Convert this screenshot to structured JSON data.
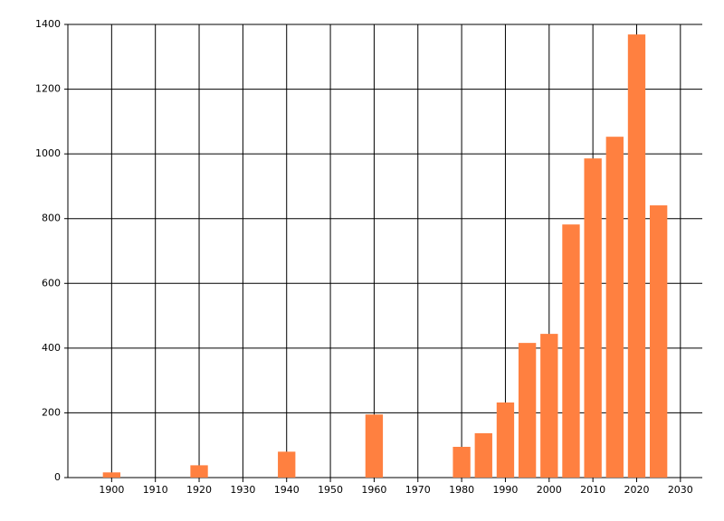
{
  "chart_data": {
    "type": "bar",
    "x": [
      1900,
      1920,
      1940,
      1960,
      1980,
      1985,
      1990,
      1995,
      2000,
      2005,
      2010,
      2015,
      2020,
      2025
    ],
    "values": [
      16,
      38,
      80,
      195,
      95,
      137,
      232,
      416,
      444,
      782,
      986,
      1053,
      1369,
      841
    ],
    "color": "#ff8040",
    "xlim": [
      1890,
      2035
    ],
    "xticks": [
      1900,
      1910,
      1920,
      1930,
      1940,
      1950,
      1960,
      1970,
      1980,
      1990,
      2000,
      2010,
      2020,
      2030
    ],
    "ylim": [
      0,
      1400
    ],
    "yticks": [
      0,
      200,
      400,
      600,
      800,
      1000,
      1200,
      1400
    ],
    "grid": true
  }
}
